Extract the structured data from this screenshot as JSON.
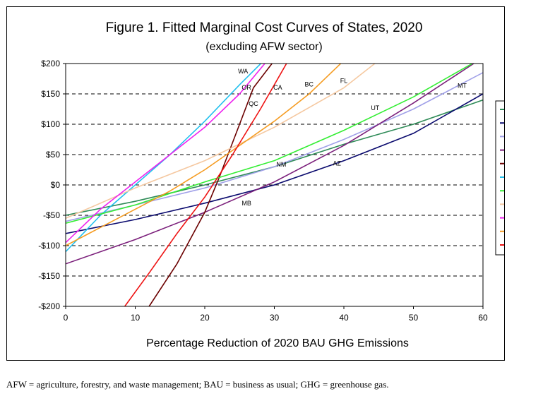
{
  "chart_data": {
    "type": "line",
    "title": "Figure 1. Fitted Marginal Cost Curves of States, 2020",
    "subtitle": "(excluding AFW sector)",
    "xlabel": "Percentage Reduction of 2020 BAU GHG Emissions",
    "ylabel": "",
    "xlim": [
      0,
      60
    ],
    "ylim": [
      -200,
      200
    ],
    "x_ticks": [
      "0",
      "10",
      "20",
      "30",
      "40",
      "50",
      "60"
    ],
    "y_ticks": [
      "$200",
      "$150",
      "$100",
      "$50",
      "$0",
      "-$50",
      "-$100",
      "-$150",
      "-$200"
    ],
    "grid": "horizontal dashed",
    "legend_position": "right",
    "series": [
      {
        "name": "NM",
        "color": "#2e8b57",
        "label": "NM",
        "label_at": [
          31,
          30
        ],
        "x": [
          0,
          10,
          20,
          30,
          40,
          50,
          60
        ],
        "y": [
          -50,
          -27,
          0,
          30,
          67,
          100,
          140
        ]
      },
      {
        "name": "AZ",
        "color": "#0a0a6e",
        "label": "AZ",
        "label_at": [
          39,
          32
        ],
        "x": [
          0,
          10,
          20,
          30,
          40,
          50,
          60
        ],
        "y": [
          -80,
          -57,
          -30,
          0,
          40,
          85,
          150
        ]
      },
      {
        "name": "MT",
        "color": "#a0a0e8",
        "label": "MT",
        "label_at": [
          57,
          160
        ],
        "x": [
          0,
          10,
          20,
          30,
          40,
          50,
          60
        ],
        "y": [
          -60,
          -33,
          -5,
          30,
          75,
          125,
          185
        ]
      },
      {
        "name": "MB",
        "color": "#7b1f7b",
        "label": "MB",
        "label_at": [
          26,
          -34
        ],
        "x": [
          0,
          10,
          20,
          30,
          40,
          50,
          60
        ],
        "y": [
          -130,
          -90,
          -45,
          5,
          65,
          135,
          210
        ]
      },
      {
        "name": "QC",
        "color": "#6b0000",
        "label": "QC",
        "label_at": [
          27,
          130
        ],
        "x": [
          12,
          16,
          20,
          22,
          25,
          27,
          30
        ],
        "y": [
          -200,
          -130,
          -45,
          10,
          100,
          160,
          205
        ]
      },
      {
        "name": "WA",
        "color": "#22c0ee",
        "label": "WA",
        "label_at": [
          25.5,
          184
        ],
        "x": [
          0,
          5,
          10,
          15,
          20,
          25,
          28.5
        ],
        "y": [
          -110,
          -50,
          0,
          50,
          105,
          165,
          205
        ]
      },
      {
        "name": "UT",
        "color": "#33ee33",
        "label": "UT",
        "label_at": [
          44.5,
          123
        ],
        "x": [
          0,
          10,
          20,
          30,
          40,
          50,
          60
        ],
        "y": [
          -63,
          -33,
          5,
          40,
          90,
          145,
          210
        ]
      },
      {
        "name": "FL",
        "color": "#f5c8a0",
        "label": "FL",
        "label_at": [
          40,
          168
        ],
        "x": [
          0,
          10,
          20,
          30,
          40,
          45
        ],
        "y": [
          -55,
          -5,
          40,
          95,
          160,
          205
        ]
      },
      {
        "name": "OR",
        "color": "#ee22ee",
        "label": "OR",
        "label_at": [
          26,
          157
        ],
        "x": [
          0,
          5,
          10,
          15,
          20,
          25,
          29
        ],
        "y": [
          -95,
          -40,
          5,
          50,
          95,
          150,
          205
        ]
      },
      {
        "name": "BC",
        "color": "#f59c22",
        "label": "BC",
        "label_at": [
          35,
          162
        ],
        "x": [
          0,
          5,
          10,
          15,
          20,
          25,
          30,
          35,
          40
        ],
        "y": [
          -100,
          -70,
          -40,
          -10,
          25,
          65,
          105,
          150,
          205
        ]
      },
      {
        "name": "CA",
        "color": "#ee1111",
        "label": "CA",
        "label_at": [
          30.5,
          157
        ],
        "x": [
          8.5,
          12,
          16,
          20,
          24,
          28,
          32
        ],
        "y": [
          -200,
          -145,
          -80,
          -20,
          50,
          125,
          205
        ]
      }
    ]
  },
  "footnote": "AFW = agriculture, forestry, and waste management; BAU = business as usual; GHG = greenhouse gas."
}
